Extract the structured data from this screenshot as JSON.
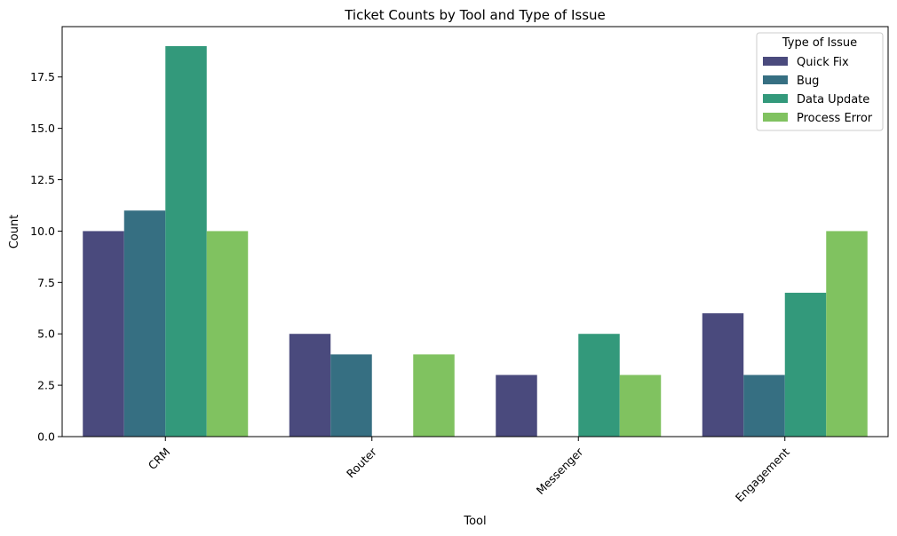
{
  "chart_data": {
    "type": "bar",
    "title": "Ticket Counts by Tool and Type of Issue",
    "xlabel": "Tool",
    "ylabel": "Count",
    "categories": [
      "CRM",
      "Router",
      "Messenger",
      "Engagement"
    ],
    "yticks": [
      "0.0",
      "2.5",
      "5.0",
      "7.5",
      "10.0",
      "12.5",
      "15.0",
      "17.5"
    ],
    "ylim": [
      0,
      19.95
    ],
    "grid": false,
    "legend": {
      "title": "Type of Issue",
      "placement": "top-right"
    },
    "series": [
      {
        "name": "Quick Fix",
        "color": "#4a4a7d",
        "values": [
          10,
          5,
          3,
          6
        ]
      },
      {
        "name": "Bug",
        "color": "#366f82",
        "values": [
          11,
          4,
          0,
          3
        ]
      },
      {
        "name": "Data Update",
        "color": "#33997b",
        "values": [
          19,
          0,
          5,
          7
        ]
      },
      {
        "name": "Process Error",
        "color": "#80c260",
        "values": [
          10,
          4,
          3,
          10
        ]
      }
    ]
  }
}
